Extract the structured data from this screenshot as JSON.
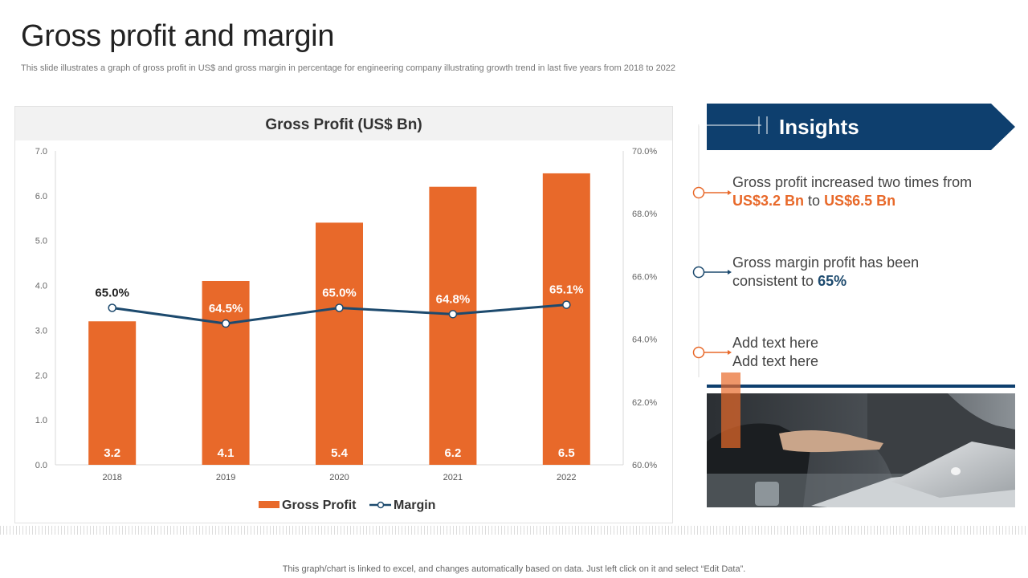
{
  "page": {
    "title": "Gross profit and margin",
    "subtitle": "This slide illustrates a graph of gross profit in US$ and gross margin in percentage for engineering company illustrating growth trend in last five years from 2018 to 2022",
    "footer": "This graph/chart is linked to excel,  and changes automatically based on data. Just left click on it and select “Edit Data”."
  },
  "chart_data": {
    "type": "bar+line",
    "title": "Gross Profit (US$ Bn)",
    "categories": [
      "2018",
      "2019",
      "2020",
      "2021",
      "2022"
    ],
    "series": [
      {
        "name": "Gross Profit",
        "kind": "bar",
        "axis": "left",
        "values": [
          3.2,
          4.1,
          5.4,
          6.2,
          6.5
        ],
        "labels": [
          "3.2",
          "4.1",
          "5.4",
          "6.2",
          "6.5"
        ]
      },
      {
        "name": "Margin",
        "kind": "line",
        "axis": "right",
        "values": [
          65.0,
          64.5,
          65.0,
          64.8,
          65.1
        ],
        "labels": [
          "65.0%",
          "64.5%",
          "65.0%",
          "64.8%",
          "65.1%"
        ]
      }
    ],
    "left_axis": {
      "min": 0,
      "max": 7,
      "ticks": [
        "0.0",
        "1.0",
        "2.0",
        "3.0",
        "4.0",
        "5.0",
        "6.0",
        "7.0"
      ]
    },
    "right_axis": {
      "min": 60,
      "max": 70,
      "ticks": [
        "60.0%",
        "62.0%",
        "64.0%",
        "66.0%",
        "68.0%",
        "70.0%"
      ]
    },
    "legend": [
      "Gross Profit",
      "Margin"
    ],
    "legend_position": "bottom",
    "grid": false
  },
  "insights": {
    "heading": "Insights",
    "item1": {
      "text_a": "Gross profit increased two times from",
      "value_1": "US$3.2 Bn",
      "mid": " to ",
      "value_2": "US$6.5 Bn"
    },
    "item2": {
      "text_a": "Gross margin profit has been consistent to ",
      "value": "65%"
    },
    "item3": {
      "line1": "Add text here",
      "line2": "Add text here"
    }
  },
  "colors": {
    "bar": "#e8692a",
    "line": "#1d4a6e",
    "banner": "#0e3f6e",
    "accent_orange": "#e8692a",
    "accent_blue": "#1d4a6e"
  },
  "photo": {
    "icon": "business-meeting-photo"
  }
}
